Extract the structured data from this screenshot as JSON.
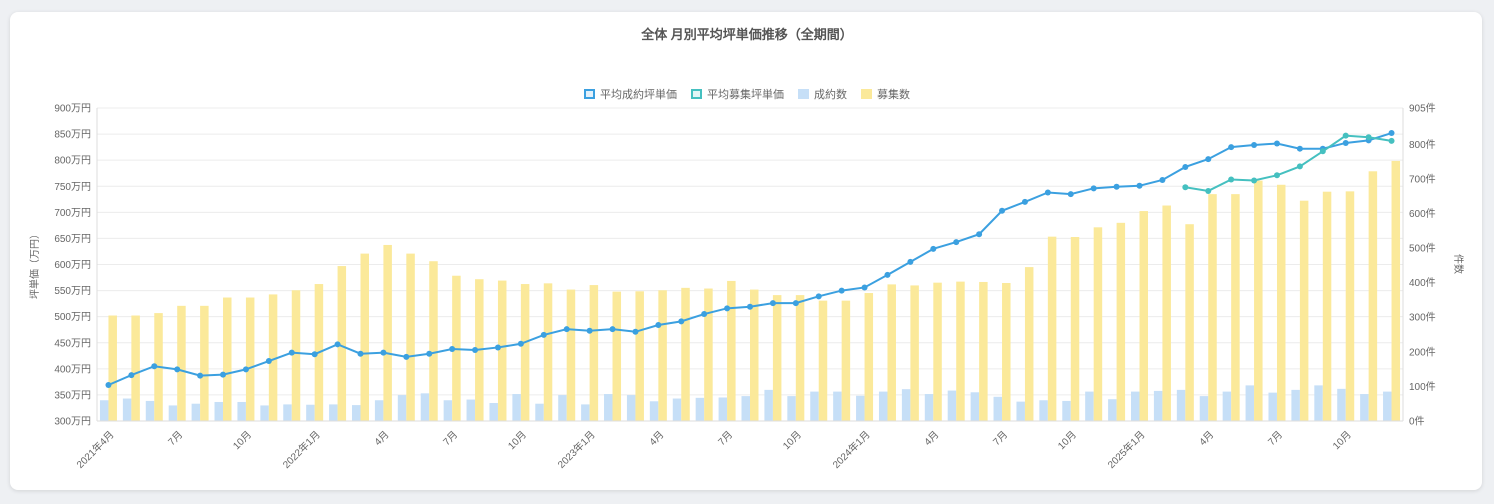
{
  "chart_data": {
    "type": "bar+line",
    "title": "全体 月別平均坪単価推移（全期間）",
    "ylabel_left": "坪単価（万円）",
    "ylabel_right": "件数",
    "ylim_left": [
      300,
      900
    ],
    "ylim_right": [
      0,
      905
    ],
    "y_ticks_left": [
      "900万円",
      "850万円",
      "800万円",
      "750万円",
      "700万円",
      "650万円",
      "600万円",
      "550万円",
      "500万円",
      "450万円",
      "400万円",
      "350万円",
      "300万円"
    ],
    "y_ticks_right": [
      "905件",
      "800件",
      "700件",
      "600件",
      "500件",
      "400件",
      "300件",
      "200件",
      "100件",
      "0件"
    ],
    "y_ticks_right_values": [
      905,
      800,
      700,
      600,
      500,
      400,
      300,
      200,
      100,
      0
    ],
    "x_tick_labels": [
      {
        "index": 0,
        "label": "2021年4月"
      },
      {
        "index": 3,
        "label": "7月"
      },
      {
        "index": 6,
        "label": "10月"
      },
      {
        "index": 9,
        "label": "2022年1月"
      },
      {
        "index": 12,
        "label": "4月"
      },
      {
        "index": 15,
        "label": "7月"
      },
      {
        "index": 18,
        "label": "10月"
      },
      {
        "index": 21,
        "label": "2023年1月"
      },
      {
        "index": 24,
        "label": "4月"
      },
      {
        "index": 27,
        "label": "7月"
      },
      {
        "index": 30,
        "label": "10月"
      },
      {
        "index": 33,
        "label": "2024年1月"
      },
      {
        "index": 36,
        "label": "4月"
      },
      {
        "index": 39,
        "label": "7月"
      },
      {
        "index": 42,
        "label": "10月"
      },
      {
        "index": 45,
        "label": "2025年1月"
      },
      {
        "index": 48,
        "label": "4月"
      },
      {
        "index": 51,
        "label": "7月"
      },
      {
        "index": 54,
        "label": "10月"
      }
    ],
    "legend": [
      {
        "name": "平均成約坪単価",
        "color": "#3ba0e0",
        "kind": "line"
      },
      {
        "name": "平均募集坪単価",
        "color": "#45c0c0",
        "kind": "line"
      },
      {
        "name": "成約数",
        "color": "#c6dff7",
        "kind": "bar"
      },
      {
        "name": "募集数",
        "color": "#fbe99a",
        "kind": "bar"
      }
    ],
    "series": [
      {
        "name": "平均成約坪単価",
        "axis": "left",
        "values": [
          369,
          388,
          405,
          399,
          387,
          389,
          399,
          415,
          431,
          428,
          447,
          429,
          431,
          423,
          429,
          438,
          436,
          441,
          448,
          465,
          476,
          473,
          476,
          471,
          484,
          491,
          505,
          516,
          519,
          526,
          526,
          539,
          550,
          556,
          580,
          605,
          630,
          643,
          658,
          703,
          720,
          738,
          735,
          746,
          749,
          751,
          762,
          787,
          802,
          825,
          829,
          832,
          822,
          822,
          833,
          838,
          852
        ]
      },
      {
        "name": "平均募集坪単価",
        "axis": "left",
        "start_index": 47,
        "values": [
          748,
          741,
          763,
          761,
          771,
          788,
          817,
          847,
          844,
          837
        ]
      },
      {
        "name": "成約数",
        "axis": "right",
        "values": [
          60,
          65,
          58,
          45,
          50,
          55,
          55,
          45,
          48,
          47,
          48,
          46,
          60,
          75,
          80,
          60,
          62,
          52,
          78,
          50,
          75,
          48,
          78,
          75,
          57,
          65,
          67,
          68,
          72,
          90,
          72,
          85,
          85,
          73,
          85,
          92,
          78,
          88,
          83,
          70,
          56,
          60,
          58,
          85,
          63,
          85,
          87,
          90,
          72,
          85,
          103,
          82,
          90,
          103,
          93,
          78,
          85
        ]
      },
      {
        "name": "募集数",
        "axis": "right",
        "values": [
          305,
          305,
          312,
          333,
          333,
          357,
          357,
          366,
          378,
          396,
          448,
          484,
          509,
          484,
          462,
          420,
          410,
          406,
          396,
          398,
          380,
          393,
          374,
          375,
          378,
          385,
          383,
          405,
          380,
          364,
          364,
          348,
          348,
          370,
          395,
          392,
          400,
          403,
          402,
          399,
          445,
          533,
          532,
          560,
          573,
          607,
          623,
          569,
          656,
          656,
          695,
          683,
          637,
          663,
          664,
          722,
          752
        ]
      }
    ]
  }
}
